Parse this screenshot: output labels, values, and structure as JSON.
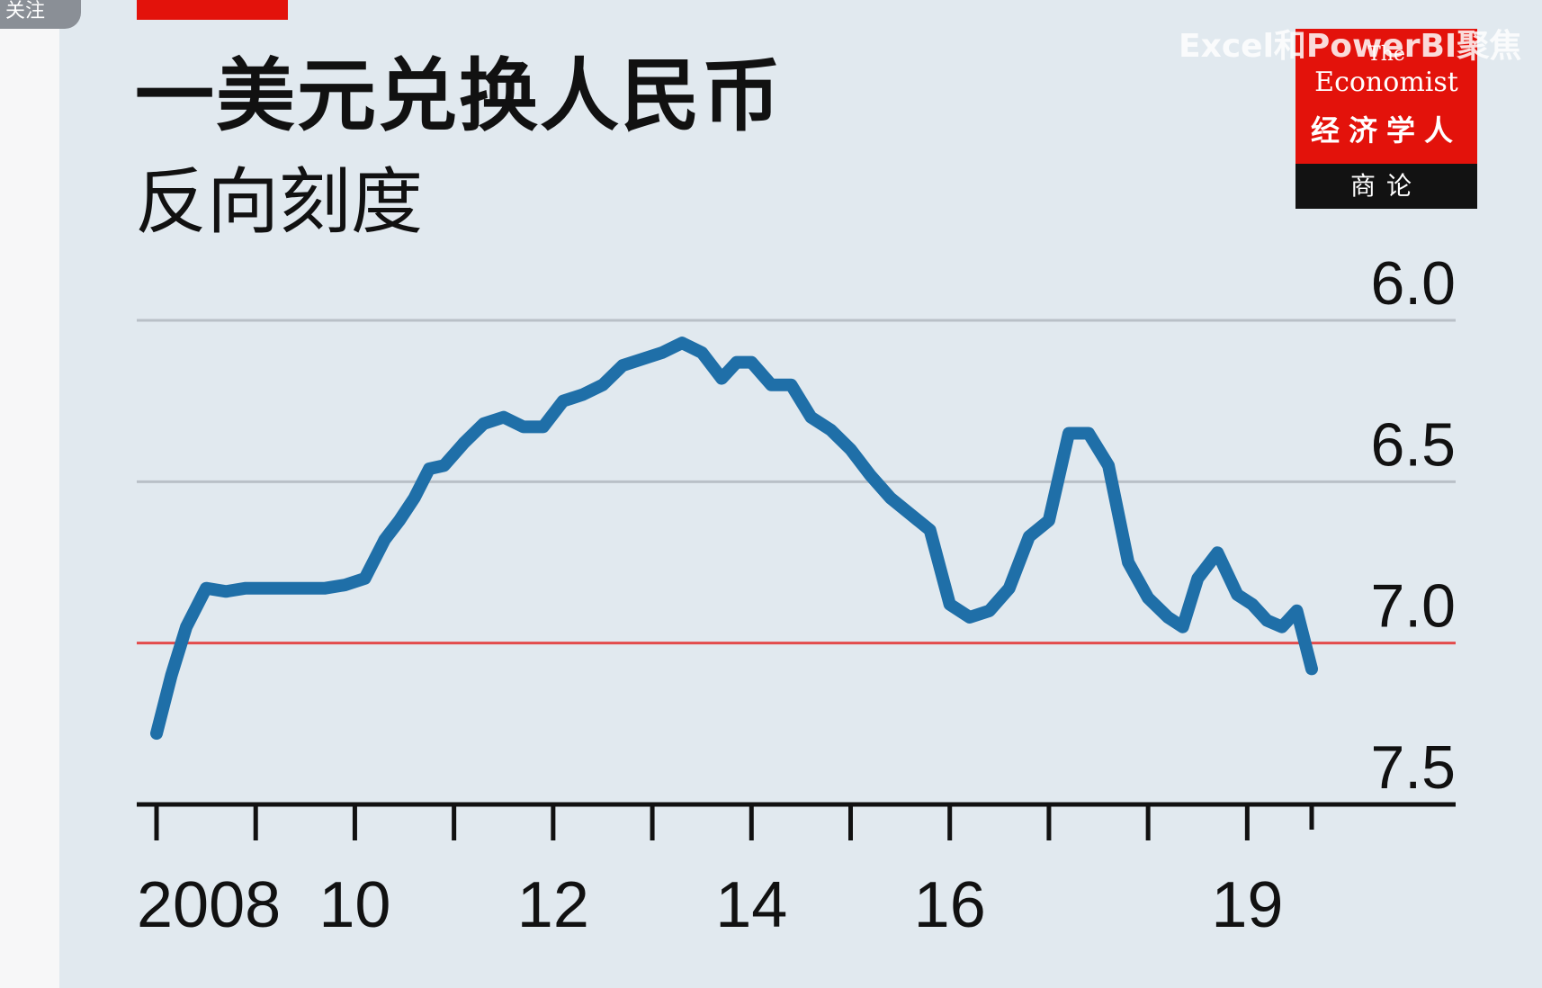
{
  "overlay": {
    "follow_badge": "关注",
    "watermark": "Excel和PowerBI聚焦"
  },
  "logo": {
    "the": "The",
    "economist": "Economist",
    "chinese": "经济学人",
    "bar": "商论",
    "color": "#e3120b"
  },
  "chart_data": {
    "type": "line",
    "title": "一美元兑换人民币",
    "subtitle": "反向刻度",
    "y_inverted": true,
    "ylim": [
      7.5,
      6.0
    ],
    "y_ticks": [
      "6.0",
      "6.5",
      "7.0",
      "7.5"
    ],
    "highlight_level": {
      "value": 7.0,
      "label": "7.0",
      "color": "#e34b4b"
    },
    "x_ticks": [
      "2008",
      "10",
      "12",
      "14",
      "16",
      "19"
    ],
    "grid": true,
    "series_color": "#1f6fa8",
    "series": [
      {
        "x": [
          2008.0,
          2008.15,
          2008.3,
          2008.5,
          2008.7,
          2008.9,
          2009.1,
          2009.3,
          2009.5,
          2009.7,
          2009.9,
          2010.1,
          2010.3,
          2010.45,
          2010.6,
          2010.75,
          2010.9,
          2011.1,
          2011.3,
          2011.5,
          2011.7,
          2011.9,
          2012.1,
          2012.3,
          2012.5,
          2012.7,
          2012.9,
          2013.1,
          2013.3,
          2013.5,
          2013.7,
          2013.85,
          2014.0,
          2014.2,
          2014.4,
          2014.6,
          2014.8,
          2015.0,
          2015.2,
          2015.4,
          2015.6,
          2015.8,
          2016.0,
          2016.2,
          2016.4,
          2016.6,
          2016.8,
          2017.0,
          2017.2,
          2017.4,
          2017.6,
          2017.8,
          2018.0,
          2018.2,
          2018.35,
          2018.5,
          2018.7,
          2018.9,
          2019.05,
          2019.2,
          2019.35,
          2019.5,
          2019.65
        ],
        "y": [
          7.28,
          7.1,
          6.95,
          6.83,
          6.84,
          6.83,
          6.83,
          6.83,
          6.83,
          6.83,
          6.82,
          6.8,
          6.68,
          6.62,
          6.55,
          6.46,
          6.45,
          6.38,
          6.32,
          6.3,
          6.33,
          6.33,
          6.25,
          6.23,
          6.2,
          6.14,
          6.12,
          6.1,
          6.07,
          6.1,
          6.18,
          6.13,
          6.13,
          6.2,
          6.2,
          6.3,
          6.34,
          6.4,
          6.48,
          6.55,
          6.6,
          6.65,
          6.88,
          6.92,
          6.9,
          6.83,
          6.67,
          6.62,
          6.35,
          6.35,
          6.45,
          6.75,
          6.86,
          6.92,
          6.95,
          6.8,
          6.72,
          6.85,
          6.88,
          6.93,
          6.95,
          6.9,
          7.08
        ]
      }
    ]
  }
}
